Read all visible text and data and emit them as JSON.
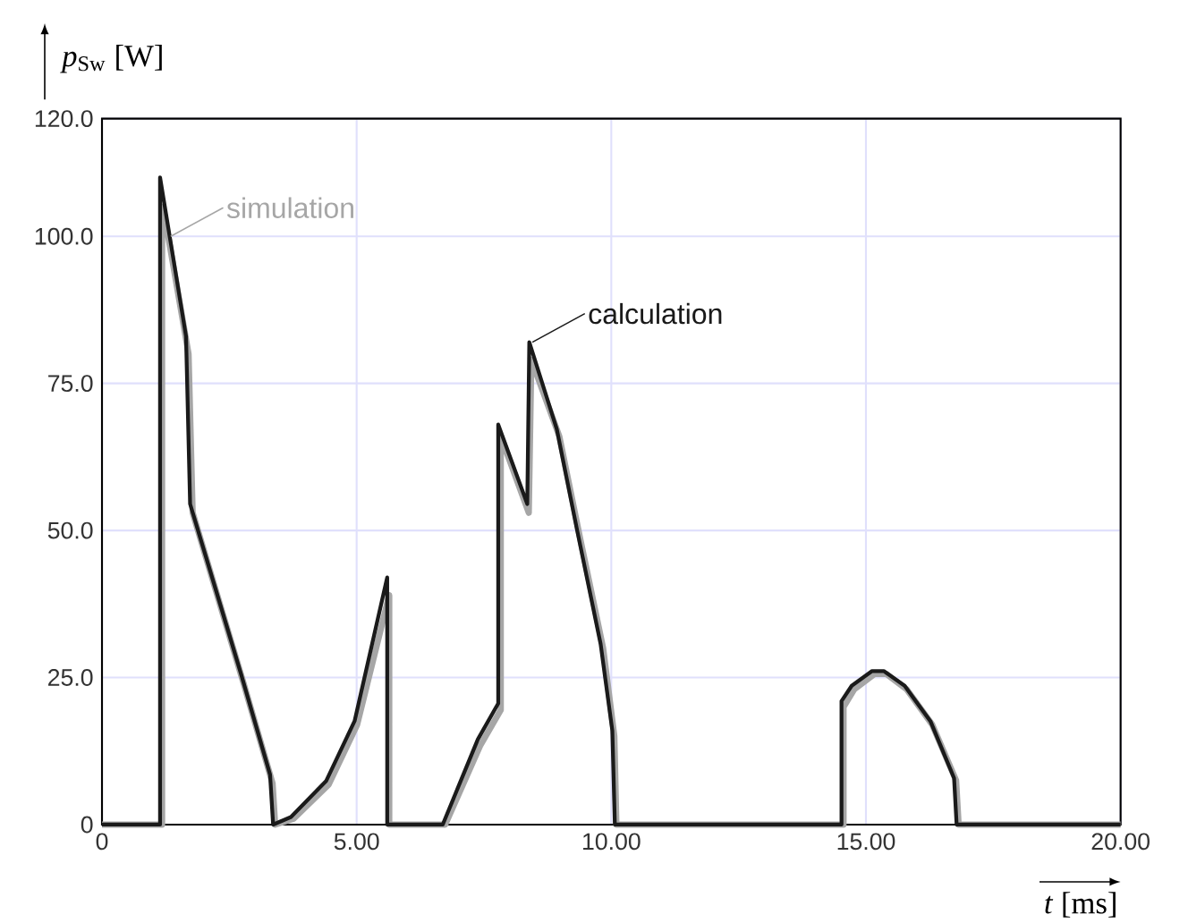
{
  "chart_data": {
    "type": "line",
    "xlabel": "*t* [ms]",
    "ylabel": "*p*$_{Sw}$ [W]",
    "xlim": [
      0,
      20
    ],
    "ylim": [
      0,
      120
    ],
    "xticks": [
      0,
      {
        "value": 5,
        "label": "5.00"
      },
      {
        "value": 10,
        "label": "10.00"
      },
      {
        "value": 15,
        "label": "15.00"
      },
      {
        "value": 20,
        "label": "20.00"
      }
    ],
    "yticks": [
      0,
      {
        "value": 25,
        "label": "25.0"
      },
      {
        "value": 50,
        "label": "50.0"
      },
      {
        "value": 75,
        "label": "75.0"
      },
      {
        "value": 100,
        "label": "100.0"
      },
      {
        "value": 120,
        "label": "120.0"
      }
    ],
    "grid": true,
    "marker": "none",
    "line_style": "solid",
    "series": [
      {
        "color": "#a6a6a6",
        "x": [
          0,
          1.18,
          1.18,
          1.3,
          1.7,
          1.78,
          2.78,
          3.35,
          3.4,
          3.76,
          4.45,
          5.01,
          5.64,
          5.64,
          6.74,
          7.43,
          7.83,
          7.83,
          8.38,
          8.43,
          8.98,
          9.38,
          9.84,
          10.06,
          10.1,
          14.56,
          14.56,
          14.77,
          15.17,
          15.4,
          15.8,
          16.3,
          16.77,
          16.82,
          20
        ],
        "values": [
          0,
          0,
          105,
          100,
          80,
          53,
          24,
          7,
          0,
          1,
          6.8,
          17,
          39,
          0,
          0,
          13.5,
          19.5,
          66,
          53,
          79,
          66,
          49,
          30,
          15,
          0,
          0,
          20,
          23,
          25.6,
          25.6,
          23,
          17,
          7.5,
          0,
          0
        ]
      },
      {
        "color": "#1a1a1a",
        "x": [
          0,
          1.14,
          1.14,
          1.65,
          1.73,
          2.73,
          3.3,
          3.36,
          3.71,
          4.4,
          4.96,
          5.6,
          5.6,
          6.69,
          7.38,
          7.78,
          7.78,
          8.35,
          8.39,
          8.93,
          9.33,
          9.79,
          10.02,
          10.07,
          14.52,
          14.52,
          14.72,
          15.12,
          15.35,
          15.76,
          16.27,
          16.73,
          16.78,
          20
        ],
        "values": [
          0,
          0,
          110,
          83,
          54.5,
          25.6,
          8.5,
          0,
          1.3,
          7.4,
          17.6,
          42,
          0,
          0,
          14.5,
          20.6,
          68,
          54.5,
          82,
          67.2,
          50,
          30.7,
          16,
          0,
          0,
          21,
          23.6,
          26.1,
          26.1,
          23.6,
          17.5,
          7.9,
          0,
          0
        ]
      }
    ],
    "annotations": [
      {
        "text": "simulation",
        "x": 1.35,
        "y": 100
      },
      {
        "text": "calculation",
        "x": 8.45,
        "y": 82
      }
    ]
  }
}
